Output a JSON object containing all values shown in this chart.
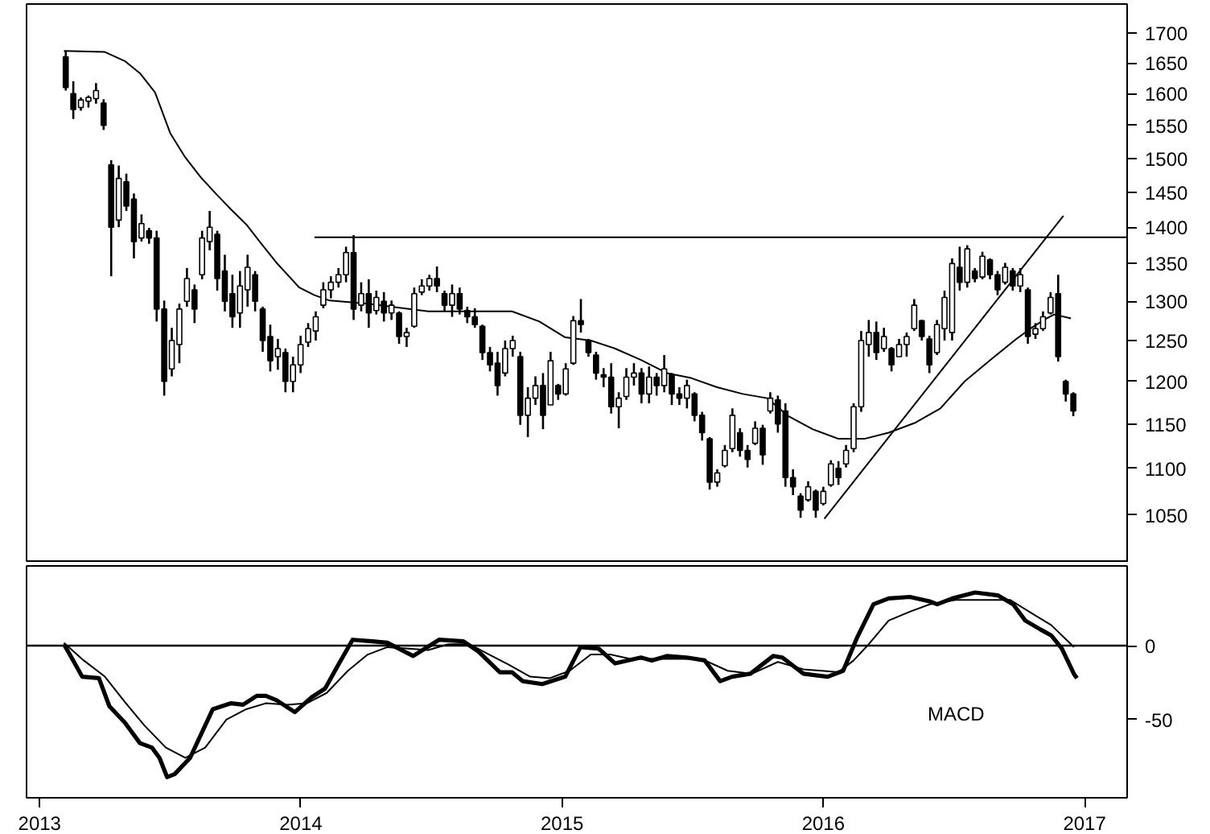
{
  "chart_data": [
    {
      "type": "candlestick",
      "color": "#000000",
      "log": "y",
      "tick_labels": "y",
      "grid": false,
      "xlim": [
        2012.95,
        2017.163
      ],
      "xticks": [
        2013,
        2014,
        2015,
        2016,
        2017
      ],
      "ylim": [
        1001,
        1750
      ],
      "yticks": [
        1050,
        1100,
        1150,
        1200,
        1250,
        1300,
        1350,
        1400,
        1450,
        1500,
        1550,
        1600,
        1650,
        1700
      ],
      "x": [
        2013.1,
        2013.129,
        2013.158,
        2013.187,
        2013.216,
        2013.245,
        2013.274,
        2013.303,
        2013.332,
        2013.361,
        2013.39,
        2013.419,
        2013.448,
        2013.477,
        2013.506,
        2013.535,
        2013.564,
        2013.593,
        2013.622,
        2013.651,
        2013.68,
        2013.709,
        2013.738,
        2013.767,
        2013.796,
        2013.825,
        2013.854,
        2013.883,
        2013.912,
        2013.941,
        2013.97,
        2013.999,
        2014.028,
        2014.057,
        2014.086,
        2014.115,
        2014.144,
        2014.173,
        2014.202,
        2014.231,
        2014.26,
        2014.289,
        2014.318,
        2014.347,
        2014.376,
        2014.405,
        2014.434,
        2014.463,
        2014.492,
        2014.521,
        2014.55,
        2014.579,
        2014.608,
        2014.637,
        2014.666,
        2014.695,
        2014.724,
        2014.753,
        2014.782,
        2014.811,
        2014.84,
        2014.869,
        2014.898,
        2014.927,
        2014.956,
        2014.985,
        2015.014,
        2015.043,
        2015.072,
        2015.101,
        2015.13,
        2015.159,
        2015.188,
        2015.217,
        2015.246,
        2015.275,
        2015.304,
        2015.333,
        2015.362,
        2015.391,
        2015.42,
        2015.449,
        2015.478,
        2015.507,
        2015.536,
        2015.565,
        2015.594,
        2015.623,
        2015.652,
        2015.681,
        2015.71,
        2015.739,
        2015.768,
        2015.797,
        2015.826,
        2015.855,
        2015.884,
        2015.913,
        2015.942,
        2015.971,
        2016.0,
        2016.029,
        2016.058,
        2016.087,
        2016.116,
        2016.145,
        2016.174,
        2016.203,
        2016.232,
        2016.261,
        2016.29,
        2016.319,
        2016.348,
        2016.377,
        2016.406,
        2016.435,
        2016.464,
        2016.493,
        2016.522,
        2016.551,
        2016.58,
        2016.609,
        2016.638,
        2016.667,
        2016.696,
        2016.725,
        2016.754,
        2016.783,
        2016.812,
        2016.841,
        2016.87,
        2016.899,
        2016.928,
        2016.957
      ],
      "ohlc": [
        [
          1660,
          1670,
          1605,
          1610
        ],
        [
          1600,
          1620,
          1560,
          1575
        ],
        [
          1578,
          1594,
          1573,
          1590
        ],
        [
          1588,
          1597,
          1578,
          1594
        ],
        [
          1592,
          1617,
          1584,
          1605
        ],
        [
          1585,
          1591,
          1543,
          1550
        ],
        [
          1490,
          1497,
          1333,
          1400
        ],
        [
          1410,
          1489,
          1400,
          1470
        ],
        [
          1465,
          1477,
          1423,
          1430
        ],
        [
          1440,
          1448,
          1357,
          1380
        ],
        [
          1385,
          1418,
          1380,
          1405
        ],
        [
          1395,
          1399,
          1377,
          1385
        ],
        [
          1385,
          1395,
          1274,
          1290
        ],
        [
          1290,
          1301,
          1183,
          1200
        ],
        [
          1215,
          1266,
          1206,
          1250
        ],
        [
          1245,
          1297,
          1222,
          1290
        ],
        [
          1300,
          1344,
          1293,
          1330
        ],
        [
          1315,
          1322,
          1272,
          1290
        ],
        [
          1335,
          1395,
          1329,
          1385
        ],
        [
          1380,
          1423,
          1368,
          1400
        ],
        [
          1390,
          1395,
          1314,
          1330
        ],
        [
          1340,
          1362,
          1287,
          1300
        ],
        [
          1310,
          1335,
          1266,
          1280
        ],
        [
          1285,
          1340,
          1266,
          1320
        ],
        [
          1315,
          1362,
          1293,
          1345
        ],
        [
          1335,
          1340,
          1287,
          1300
        ],
        [
          1290,
          1293,
          1236,
          1250
        ],
        [
          1255,
          1270,
          1212,
          1225
        ],
        [
          1230,
          1252,
          1214,
          1240
        ],
        [
          1235,
          1240,
          1187,
          1200
        ],
        [
          1200,
          1230,
          1187,
          1220
        ],
        [
          1220,
          1256,
          1210,
          1245
        ],
        [
          1248,
          1272,
          1242,
          1265
        ],
        [
          1262,
          1287,
          1250,
          1280
        ],
        [
          1295,
          1325,
          1291,
          1315
        ],
        [
          1315,
          1333,
          1304,
          1325
        ],
        [
          1325,
          1344,
          1318,
          1335
        ],
        [
          1335,
          1373,
          1325,
          1365
        ],
        [
          1365,
          1389,
          1276,
          1290
        ],
        [
          1295,
          1325,
          1287,
          1310
        ],
        [
          1310,
          1329,
          1266,
          1285
        ],
        [
          1288,
          1314,
          1283,
          1305
        ],
        [
          1300,
          1312,
          1274,
          1285
        ],
        [
          1285,
          1301,
          1276,
          1295
        ],
        [
          1285,
          1287,
          1246,
          1255
        ],
        [
          1255,
          1266,
          1242,
          1260
        ],
        [
          1268,
          1318,
          1266,
          1310
        ],
        [
          1312,
          1329,
          1308,
          1320
        ],
        [
          1320,
          1335,
          1314,
          1330
        ],
        [
          1330,
          1346,
          1312,
          1320
        ],
        [
          1310,
          1314,
          1287,
          1295
        ],
        [
          1295,
          1322,
          1280,
          1310
        ],
        [
          1310,
          1318,
          1283,
          1290
        ],
        [
          1288,
          1293,
          1272,
          1280
        ],
        [
          1280,
          1291,
          1266,
          1270
        ],
        [
          1268,
          1270,
          1226,
          1235
        ],
        [
          1235,
          1242,
          1212,
          1220
        ],
        [
          1222,
          1236,
          1183,
          1195
        ],
        [
          1210,
          1250,
          1206,
          1240
        ],
        [
          1240,
          1256,
          1230,
          1250
        ],
        [
          1230,
          1236,
          1149,
          1160
        ],
        [
          1160,
          1193,
          1135,
          1180
        ],
        [
          1180,
          1206,
          1172,
          1195
        ],
        [
          1195,
          1210,
          1144,
          1160
        ],
        [
          1172,
          1236,
          1172,
          1225
        ],
        [
          1195,
          1197,
          1178,
          1185
        ],
        [
          1185,
          1222,
          1183,
          1215
        ],
        [
          1222,
          1281,
          1220,
          1275
        ],
        [
          1275,
          1303,
          1260,
          1270
        ],
        [
          1250,
          1252,
          1230,
          1235
        ],
        [
          1232,
          1236,
          1202,
          1210
        ],
        [
          1208,
          1216,
          1193,
          1205
        ],
        [
          1205,
          1222,
          1162,
          1170
        ],
        [
          1170,
          1187,
          1145,
          1180
        ],
        [
          1182,
          1216,
          1178,
          1205
        ],
        [
          1205,
          1222,
          1195,
          1210
        ],
        [
          1210,
          1216,
          1174,
          1185
        ],
        [
          1185,
          1218,
          1174,
          1205
        ],
        [
          1205,
          1210,
          1183,
          1195
        ],
        [
          1195,
          1232,
          1187,
          1215
        ],
        [
          1208,
          1210,
          1172,
          1185
        ],
        [
          1185,
          1193,
          1172,
          1180
        ],
        [
          1180,
          1202,
          1168,
          1195
        ],
        [
          1185,
          1187,
          1153,
          1160
        ],
        [
          1160,
          1164,
          1131,
          1140
        ],
        [
          1133,
          1135,
          1077,
          1085
        ],
        [
          1085,
          1099,
          1080,
          1095
        ],
        [
          1103,
          1126,
          1101,
          1120
        ],
        [
          1122,
          1168,
          1118,
          1160
        ],
        [
          1140,
          1145,
          1113,
          1120
        ],
        [
          1120,
          1126,
          1101,
          1110
        ],
        [
          1128,
          1153,
          1126,
          1145
        ],
        [
          1145,
          1149,
          1104,
          1115
        ],
        [
          1165,
          1187,
          1162,
          1180
        ],
        [
          1178,
          1183,
          1140,
          1150
        ],
        [
          1165,
          1174,
          1080,
          1090
        ],
        [
          1090,
          1099,
          1071,
          1080
        ],
        [
          1070,
          1073,
          1047,
          1055
        ],
        [
          1066,
          1086,
          1064,
          1080
        ],
        [
          1075,
          1077,
          1047,
          1055
        ],
        [
          1062,
          1080,
          1060,
          1075
        ],
        [
          1082,
          1109,
          1080,
          1105
        ],
        [
          1100,
          1108,
          1082,
          1090
        ],
        [
          1105,
          1126,
          1101,
          1120
        ],
        [
          1122,
          1174,
          1118,
          1170
        ],
        [
          1170,
          1262,
          1164,
          1250
        ],
        [
          1245,
          1276,
          1230,
          1260
        ],
        [
          1260,
          1274,
          1226,
          1235
        ],
        [
          1240,
          1266,
          1236,
          1255
        ],
        [
          1240,
          1242,
          1212,
          1220
        ],
        [
          1230,
          1252,
          1230,
          1245
        ],
        [
          1245,
          1260,
          1230,
          1255
        ],
        [
          1265,
          1303,
          1262,
          1295
        ],
        [
          1275,
          1276,
          1250,
          1255
        ],
        [
          1252,
          1256,
          1210,
          1220
        ],
        [
          1235,
          1276,
          1232,
          1270
        ],
        [
          1265,
          1314,
          1250,
          1305
        ],
        [
          1260,
          1357,
          1250,
          1350
        ],
        [
          1345,
          1373,
          1314,
          1325
        ],
        [
          1325,
          1375,
          1318,
          1370
        ],
        [
          1340,
          1344,
          1325,
          1330
        ],
        [
          1332,
          1366,
          1329,
          1360
        ],
        [
          1355,
          1357,
          1329,
          1335
        ],
        [
          1335,
          1340,
          1308,
          1315
        ],
        [
          1325,
          1351,
          1322,
          1345
        ],
        [
          1340,
          1344,
          1314,
          1320
        ],
        [
          1320,
          1344,
          1312,
          1335
        ],
        [
          1315,
          1318,
          1246,
          1255
        ],
        [
          1258,
          1272,
          1252,
          1265
        ],
        [
          1265,
          1287,
          1262,
          1280
        ],
        [
          1285,
          1312,
          1283,
          1305
        ],
        [
          1310,
          1335,
          1224,
          1230
        ],
        [
          1200,
          1202,
          1176,
          1185
        ],
        [
          1185,
          1187,
          1159,
          1165
        ]
      ],
      "series": [
        {
          "type": "line",
          "color": "#000000",
          "x": [
            2013.093,
            2013.25,
            2013.326,
            2013.384,
            2013.442,
            2013.5,
            2013.558,
            2013.616,
            2013.674,
            2013.733,
            2013.791,
            2013.849,
            2013.907,
            2013.965,
            2013.994,
            2014.052,
            2014.11,
            2014.256,
            2014.488,
            2014.808,
            2014.913,
            2015.012,
            2015.11,
            2015.203,
            2015.302,
            2015.401,
            2015.494,
            2015.593,
            2015.692,
            2015.785,
            2015.866,
            2015.959,
            2016.058,
            2016.157,
            2016.25,
            2016.349,
            2016.448,
            2016.541,
            2016.64,
            2016.739,
            2016.797,
            2016.855,
            2016.884,
            2016.948
          ],
          "values": [
            1670,
            1668,
            1653,
            1633,
            1602,
            1538,
            1501,
            1472,
            1448,
            1425,
            1404,
            1377,
            1351,
            1329,
            1318,
            1308,
            1301,
            1297,
            1287,
            1287,
            1274,
            1254,
            1250,
            1240,
            1226,
            1210,
            1204,
            1193,
            1185,
            1180,
            1159,
            1144,
            1133,
            1133,
            1140,
            1151,
            1168,
            1200,
            1226,
            1252,
            1266,
            1278,
            1283,
            1278
          ]
        },
        {
          "type": "line",
          "color": "#000000",
          "x": [
            2016.004,
            2016.919
          ],
          "values": [
            1046,
            1416
          ]
        },
        {
          "type": "line",
          "color": "#000000",
          "x": [
            2014.052,
            2017.163
          ],
          "values": [
            1386,
            1386
          ]
        }
      ]
    },
    {
      "type": "line",
      "grid": false,
      "xlim": [
        2012.95,
        2017.163
      ],
      "xticks": [
        2013,
        2014,
        2015,
        2016,
        2017
      ],
      "ylim": [
        -103,
        54
      ],
      "yticks": [
        -50,
        0
      ],
      "ref_lines": [
        {
          "axis": "y",
          "value": 0,
          "color": "#000000"
        }
      ],
      "annotations": [
        "MACD"
      ],
      "series": [
        {
          "color": "#000000",
          "x": [
            2013.093,
            2013.122,
            2013.163,
            2013.227,
            2013.267,
            2013.326,
            2013.384,
            2013.43,
            2013.459,
            2013.488,
            2013.517,
            2013.576,
            2013.663,
            2013.733,
            2013.779,
            2013.831,
            2013.866,
            2013.907,
            2013.977,
            2014.041,
            2014.093,
            2014.14,
            2014.198,
            2014.273,
            2014.331,
            2014.43,
            2014.529,
            2014.622,
            2014.68,
            2014.762,
            2014.808,
            2014.849,
            2014.924,
            2015.012,
            2015.07,
            2015.14,
            2015.203,
            2015.302,
            2015.343,
            2015.401,
            2015.477,
            2015.546,
            2015.605,
            2015.651,
            2015.721,
            2015.808,
            2015.843,
            2015.924,
            2016.017,
            2016.076,
            2016.128,
            2016.192,
            2016.25,
            2016.331,
            2016.407,
            2016.436,
            2016.494,
            2016.581,
            2016.669,
            2016.727,
            2016.773,
            2016.831,
            2016.872,
            2016.913,
            2016.959,
            2016.971
          ],
          "values": [
            1,
            -8,
            -21,
            -22,
            -41,
            -52,
            -66,
            -69,
            -76,
            -89,
            -87,
            -76,
            -43,
            -39,
            -40,
            -34,
            -34,
            -37,
            -45,
            -35,
            -29,
            -14,
            4,
            3,
            2,
            -7,
            4,
            3,
            -4,
            -18,
            -18,
            -24,
            -26,
            -21,
            -1,
            -2,
            -12,
            -8,
            -10,
            -7,
            -8,
            -10,
            -24,
            -21,
            -19,
            -7,
            -8,
            -19,
            -21,
            -17,
            5,
            28,
            32,
            33,
            30,
            28,
            32,
            36,
            34,
            28,
            17,
            11,
            7,
            -2,
            -19,
            -22
          ]
        },
        {
          "color": "#000000",
          "x": [
            2013.093,
            2013.169,
            2013.25,
            2013.326,
            2013.401,
            2013.483,
            2013.558,
            2013.634,
            2013.715,
            2013.791,
            2013.866,
            2013.948,
            2014.023,
            2014.099,
            2014.18,
            2014.256,
            2014.331,
            2014.413,
            2014.488,
            2014.564,
            2014.645,
            2014.721,
            2014.797,
            2014.878,
            2014.953,
            2015.029,
            2015.11,
            2015.186,
            2015.262,
            2015.535,
            2015.634,
            2015.727,
            2015.826,
            2015.924,
            2016.058,
            2016.116,
            2016.174,
            2016.25,
            2016.331,
            2016.407,
            2016.506,
            2016.599,
            2016.715,
            2016.797,
            2016.872,
            2016.948,
            2016.959
          ],
          "values": [
            2,
            -10,
            -21,
            -38,
            -54,
            -69,
            -76,
            -69,
            -50,
            -43,
            -39,
            -40,
            -39,
            -32,
            -17,
            -6,
            -1,
            -2,
            -3,
            1,
            1,
            -6,
            -13,
            -21,
            -22,
            -17,
            -6,
            -6,
            -9,
            -9,
            -17,
            -19,
            -11,
            -16,
            -18,
            -10,
            1,
            17,
            23,
            28,
            31,
            31,
            31,
            22,
            14,
            1,
            -1
          ]
        }
      ]
    }
  ]
}
